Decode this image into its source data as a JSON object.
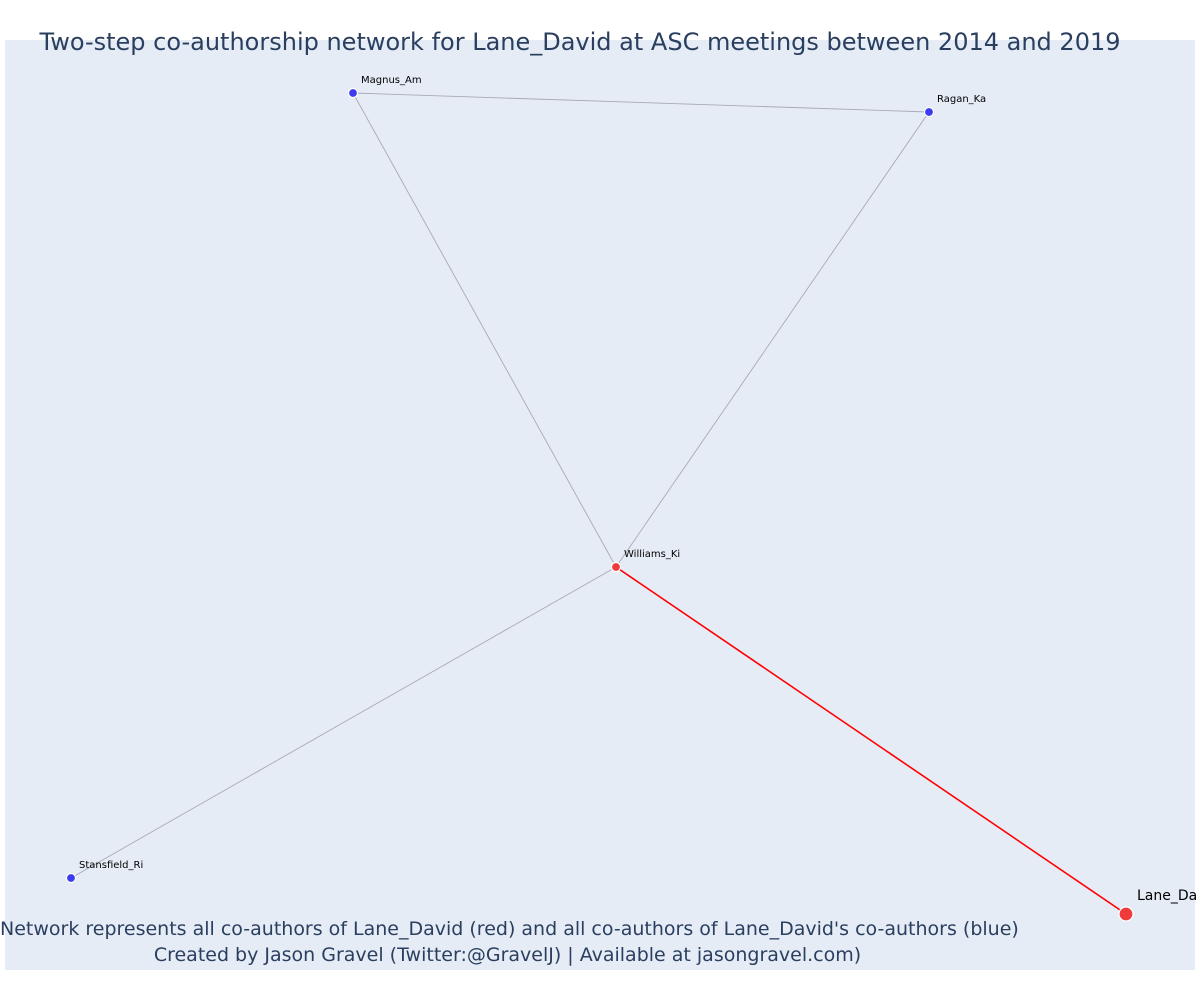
{
  "title": "Two-step co-authorship network for Lane_David at ASC meetings between 2014 and 2019",
  "caption": {
    "line1": "Network represents all co-authors of Lane_David (red) and all co-authors of Lane_David's co-authors (blue)",
    "line2": "Created by Jason Gravel (Twitter:@GravelJ) | Available at jasongravel.com)"
  },
  "colors": {
    "background": "#e5ecf6",
    "edge_default": "#a9a9b6",
    "edge_focus": "#ff0000",
    "node_red": "#ef3b3b",
    "node_blue": "#3b3bef",
    "text": "#2a3f5f"
  },
  "nodes": [
    {
      "id": "Magnus_Am",
      "label": "Magnus_Am",
      "group": "blue"
    },
    {
      "id": "Ragan_Ka",
      "label": "Ragan_Ka",
      "group": "blue"
    },
    {
      "id": "Williams_Ki",
      "label": "Williams_Ki",
      "group": "red"
    },
    {
      "id": "Stansfield_Ri",
      "label": "Stansfield_Ri",
      "group": "blue"
    },
    {
      "id": "Lane_David",
      "label": "Lane_Da",
      "group": "red",
      "focus": true
    }
  ],
  "edges": [
    {
      "source": "Magnus_Am",
      "target": "Ragan_Ka",
      "focus": false
    },
    {
      "source": "Magnus_Am",
      "target": "Williams_Ki",
      "focus": false
    },
    {
      "source": "Ragan_Ka",
      "target": "Williams_Ki",
      "focus": false
    },
    {
      "source": "Stansfield_Ri",
      "target": "Williams_Ki",
      "focus": false
    },
    {
      "source": "Williams_Ki",
      "target": "Lane_David",
      "focus": true
    }
  ]
}
